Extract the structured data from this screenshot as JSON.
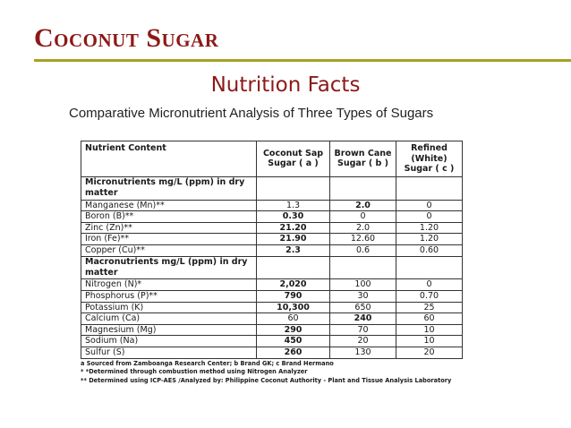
{
  "slide": {
    "title": "Coconut Sugar",
    "subtitle": "Nutrition Facts",
    "caption": "Comparative Micronutrient Analysis of Three Types of Sugars"
  },
  "table": {
    "headers": [
      "Nutrient Content",
      "Coconut Sap Sugar ( a )",
      "Brown Cane Sugar ( b )",
      "Refined (White) Sugar ( c )"
    ],
    "sections": [
      {
        "label": "Micronutrients mg/L (ppm) in dry matter",
        "rows": [
          {
            "name": "Manganese (Mn)**",
            "a": "1.3",
            "b": "2.0",
            "c": "0",
            "bold": "b"
          },
          {
            "name": "Boron (B)**",
            "a": "0.30",
            "b": "0",
            "c": "0",
            "bold": "a"
          },
          {
            "name": "Zinc (Zn)**",
            "a": "21.20",
            "b": "2.0",
            "c": "1.20",
            "bold": "a"
          },
          {
            "name": "Iron (Fe)**",
            "a": "21.90",
            "b": "12.60",
            "c": "1.20",
            "bold": "a"
          },
          {
            "name": "Copper (Cu)**",
            "a": "2.3",
            "b": "0.6",
            "c": "0.60",
            "bold": "a"
          }
        ]
      },
      {
        "label": "Macronutrients mg/L (ppm) in dry matter",
        "rows": [
          {
            "name": "Nitrogen (N)*",
            "a": "2,020",
            "b": "100",
            "c": "0",
            "bold": "a"
          },
          {
            "name": "Phosphorus (P)**",
            "a": "790",
            "b": "30",
            "c": "0.70",
            "bold": "a"
          },
          {
            "name": "Potassium (K)",
            "a": "10,300",
            "b": "650",
            "c": "25",
            "bold": "a"
          },
          {
            "name": "Calcium (Ca)",
            "a": "60",
            "b": "240",
            "c": "60",
            "bold": "b"
          },
          {
            "name": "Magnesium (Mg)",
            "a": "290",
            "b": "70",
            "c": "10",
            "bold": "a"
          },
          {
            "name": "Sodium (Na)",
            "a": "450",
            "b": "20",
            "c": "10",
            "bold": "a"
          },
          {
            "name": "Sulfur (S)",
            "a": "260",
            "b": "130",
            "c": "20",
            "bold": "a"
          }
        ]
      }
    ],
    "notes": [
      "a Sourced from Zamboanga Research Center; b Brand GK; c Brand Hermano",
      "* *Determined through combustion method using Nitrogen Analyzer",
      "** Determined using ICP-AES /Analyzed by: Philippine Coconut Authority - Plant and Tissue Analysis Laboratory"
    ]
  }
}
